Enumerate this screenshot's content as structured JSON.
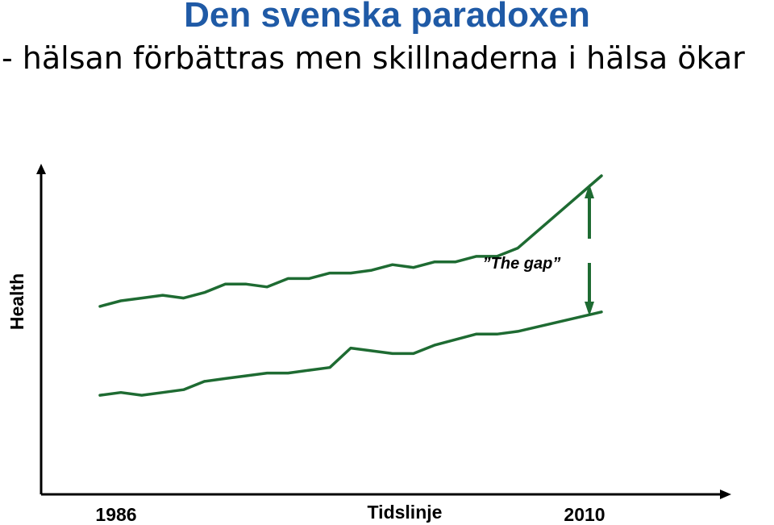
{
  "header": {
    "title": "Den svenska paradoxen",
    "subtitle": "- hälsan förbättras men skillnaderna i hälsa ökar"
  },
  "chart_data": {
    "type": "line",
    "title": "Den svenska paradoxen",
    "subtitle": "- hälsan förbättras men skillnaderna i hälsa ökar",
    "xlabel": "Tidslinje",
    "ylabel": "Health",
    "x_tick_labels": [
      "1986",
      "2010"
    ],
    "annotation": "”The gap”",
    "color": "#1e6b32",
    "grid": false,
    "series": [
      {
        "x": [
          1986.0,
          1987.0,
          1988.0,
          1989.0,
          1990.0,
          1991.0,
          1992.0,
          1993.0,
          1994.0,
          1995.0,
          1996.0,
          1997.0,
          1998.0,
          1999.0,
          2000.0,
          2001.0,
          2002.0,
          2003.0,
          2004.0,
          2005.0,
          2006.0,
          2010.0
        ],
        "values": [
          0.34,
          0.36,
          0.37,
          0.38,
          0.37,
          0.39,
          0.42,
          0.42,
          0.41,
          0.44,
          0.44,
          0.46,
          0.46,
          0.47,
          0.49,
          0.48,
          0.5,
          0.5,
          0.52,
          0.52,
          0.55,
          0.81
        ]
      },
      {
        "x": [
          1986.0,
          1987.0,
          1988.0,
          1989.0,
          1990.0,
          1991.0,
          1992.0,
          1993.0,
          1994.0,
          1995.0,
          1996.0,
          1997.0,
          1998.0,
          1999.0,
          2000.0,
          2001.0,
          2002.0,
          2003.0,
          2004.0,
          2005.0,
          2006.0,
          2010.0
        ],
        "values": [
          0.02,
          0.03,
          0.02,
          0.03,
          0.04,
          0.07,
          0.08,
          0.09,
          0.1,
          0.1,
          0.11,
          0.12,
          0.19,
          0.18,
          0.17,
          0.17,
          0.2,
          0.22,
          0.24,
          0.24,
          0.25,
          0.32
        ]
      }
    ]
  }
}
